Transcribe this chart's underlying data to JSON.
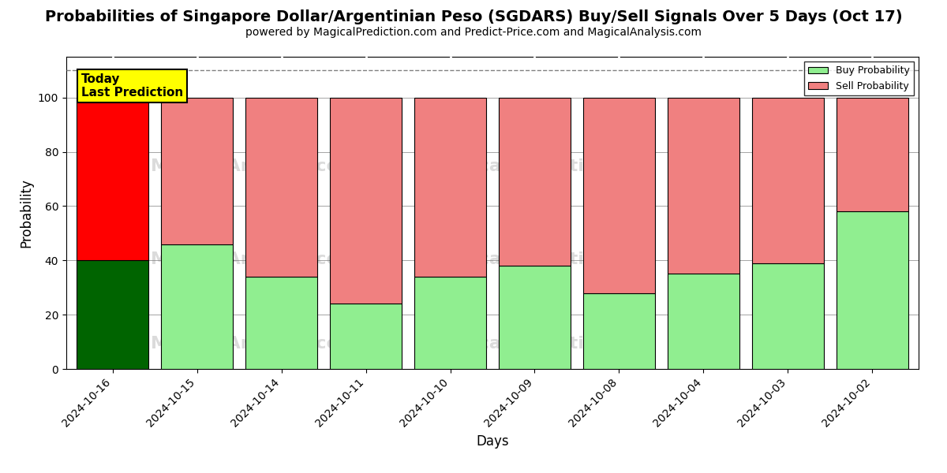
{
  "title": "Probabilities of Singapore Dollar/Argentinian Peso (SGDARS) Buy/Sell Signals Over 5 Days (Oct 17)",
  "subtitle": "powered by MagicalPrediction.com and Predict-Price.com and MagicalAnalysis.com",
  "xlabel": "Days",
  "ylabel": "Probability",
  "dates": [
    "2024-10-16",
    "2024-10-15",
    "2024-10-14",
    "2024-10-11",
    "2024-10-10",
    "2024-10-09",
    "2024-10-08",
    "2024-10-04",
    "2024-10-03",
    "2024-10-02"
  ],
  "buy_values": [
    40,
    46,
    34,
    24,
    34,
    38,
    28,
    35,
    39,
    58
  ],
  "sell_values": [
    60,
    54,
    66,
    76,
    66,
    62,
    72,
    65,
    61,
    42
  ],
  "buy_colors_first": "#006400",
  "buy_colors_rest": "#90EE90",
  "sell_colors_first": "#FF0000",
  "sell_colors_rest": "#F08080",
  "today_box_color": "#FFFF00",
  "today_text": "Today\nLast Prediction",
  "dashed_line_y": 110,
  "ylim": [
    0,
    115
  ],
  "legend_buy_label": "Buy Probability",
  "legend_sell_label": "Sell Probability",
  "grid_color": "#808080",
  "background_color": "#ffffff",
  "title_fontsize": 14,
  "subtitle_fontsize": 10,
  "bar_width": 0.85
}
